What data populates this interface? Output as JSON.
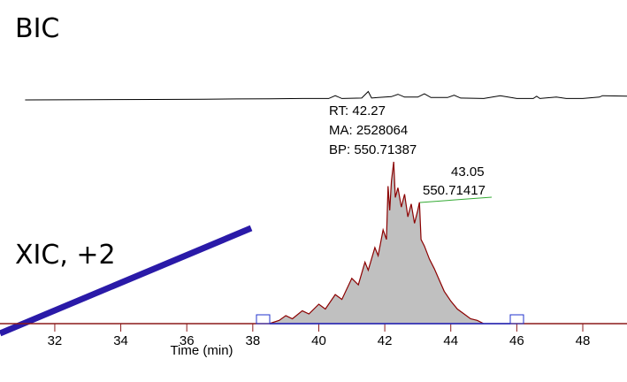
{
  "chart_data": [
    {
      "type": "line",
      "title": "BIC",
      "color": "#000000",
      "x": [
        31.1,
        33,
        35,
        36.5,
        37.5,
        38.5,
        39.5,
        40.3,
        40.5,
        40.7,
        41.3,
        41.5,
        41.6,
        41.8,
        42.2,
        42.4,
        42.6,
        43,
        43.2,
        43.4,
        43.9,
        44.1,
        44.3,
        45,
        45.5,
        46,
        46.5,
        46.6,
        46.7,
        47.2,
        47.5,
        48,
        48.5,
        48.6,
        49.34
      ],
      "values": [
        0,
        0.5,
        1,
        1.5,
        2,
        2.5,
        3,
        3,
        9,
        3,
        4,
        18,
        4,
        5,
        7,
        12,
        6,
        6,
        13,
        5,
        5,
        10,
        4,
        3,
        9,
        3,
        3,
        8,
        3,
        6,
        3,
        3,
        6,
        9,
        8
      ],
      "ylim": [
        0,
        100
      ],
      "xlim": [
        30.34,
        49.34
      ]
    },
    {
      "type": "area",
      "title": "XIC, +2",
      "color": "#8b0000",
      "fill": "#c0c0c0",
      "axis_color": "#8b1a1a",
      "x": [
        38.5,
        38.8,
        39,
        39.2,
        39.5,
        39.7,
        40,
        40.2,
        40.5,
        40.7,
        41,
        41.2,
        41.4,
        41.5,
        41.7,
        41.8,
        41.95,
        42.05,
        42.1,
        42.15,
        42.2,
        42.27,
        42.32,
        42.4,
        42.5,
        42.6,
        42.7,
        42.8,
        42.9,
        43,
        43.05,
        43.1,
        43.2,
        43.35,
        43.5,
        43.65,
        43.8,
        44,
        44.2,
        44.4,
        44.6,
        44.8,
        45
      ],
      "values": [
        0,
        2,
        5,
        3,
        8,
        6,
        12,
        9,
        18,
        15,
        28,
        24,
        38,
        33,
        47,
        42,
        58,
        52,
        85,
        70,
        88,
        100,
        78,
        84,
        72,
        80,
        66,
        74,
        62,
        70,
        75,
        52,
        48,
        40,
        34,
        27,
        20,
        14,
        9,
        6,
        3,
        2,
        0
      ],
      "ylim": [
        0,
        100
      ],
      "xlim": [
        30.34,
        49.34
      ],
      "xticks": [
        32,
        34,
        36,
        38,
        40,
        42,
        44,
        46,
        48
      ],
      "xlabel": "Time (min)",
      "annotations": [
        "RT: 42.27",
        "MA: 2528064",
        "BP: 550.71387",
        "43.05",
        "550.71417"
      ]
    }
  ]
}
